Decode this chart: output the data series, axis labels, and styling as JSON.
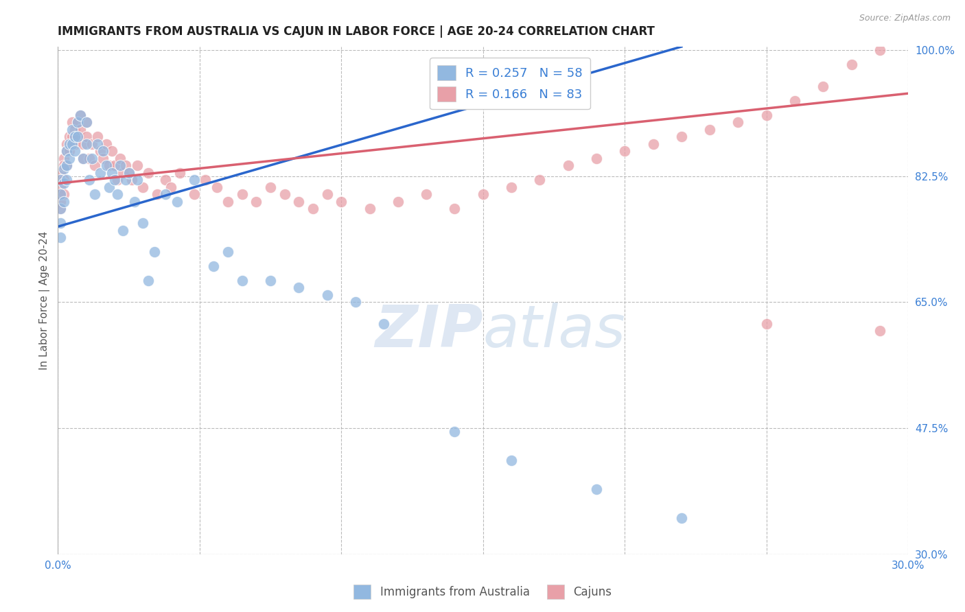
{
  "title": "IMMIGRANTS FROM AUSTRALIA VS CAJUN IN LABOR FORCE | AGE 20-24 CORRELATION CHART",
  "source": "Source: ZipAtlas.com",
  "ylabel": "In Labor Force | Age 20-24",
  "x_min": 0.0,
  "x_max": 0.3,
  "y_min": 0.3,
  "y_max": 1.005,
  "y_ticks": [
    0.3,
    0.475,
    0.65,
    0.825,
    1.0
  ],
  "australia_color": "#92b8e0",
  "cajun_color": "#e8a0a8",
  "australia_line_color": "#2a66cc",
  "cajun_line_color": "#d96070",
  "R_australia": 0.257,
  "N_australia": 58,
  "R_cajun": 0.166,
  "N_cajun": 83,
  "legend_label_australia": "Immigrants from Australia",
  "legend_label_cajun": "Cajuns",
  "watermark_zip": "ZIP",
  "watermark_atlas": "atlas",
  "background_color": "#ffffff",
  "grid_color": "#bbbbbb",
  "title_fontsize": 12,
  "axis_label_color": "#3a7fd5",
  "aus_line_x0": 0.0,
  "aus_line_x1": 0.22,
  "aus_line_y0": 0.755,
  "aus_line_y1": 1.005,
  "caj_line_x0": 0.0,
  "caj_line_x1": 0.3,
  "caj_line_y0": 0.815,
  "caj_line_y1": 0.94,
  "aus_scatter_x": [
    0.001,
    0.001,
    0.001,
    0.001,
    0.001,
    0.002,
    0.002,
    0.002,
    0.003,
    0.003,
    0.003,
    0.004,
    0.004,
    0.005,
    0.005,
    0.006,
    0.006,
    0.007,
    0.007,
    0.008,
    0.009,
    0.01,
    0.01,
    0.011,
    0.012,
    0.013,
    0.014,
    0.015,
    0.016,
    0.017,
    0.018,
    0.019,
    0.02,
    0.021,
    0.022,
    0.023,
    0.024,
    0.025,
    0.027,
    0.028,
    0.03,
    0.032,
    0.034,
    0.038,
    0.042,
    0.048,
    0.055,
    0.06,
    0.065,
    0.075,
    0.085,
    0.095,
    0.105,
    0.115,
    0.14,
    0.16,
    0.19,
    0.22
  ],
  "aus_scatter_y": [
    0.82,
    0.8,
    0.78,
    0.76,
    0.74,
    0.835,
    0.815,
    0.79,
    0.86,
    0.84,
    0.82,
    0.87,
    0.85,
    0.89,
    0.87,
    0.88,
    0.86,
    0.9,
    0.88,
    0.91,
    0.85,
    0.9,
    0.87,
    0.82,
    0.85,
    0.8,
    0.87,
    0.83,
    0.86,
    0.84,
    0.81,
    0.83,
    0.82,
    0.8,
    0.84,
    0.75,
    0.82,
    0.83,
    0.79,
    0.82,
    0.76,
    0.68,
    0.72,
    0.8,
    0.79,
    0.82,
    0.7,
    0.72,
    0.68,
    0.68,
    0.67,
    0.66,
    0.65,
    0.62,
    0.47,
    0.43,
    0.39,
    0.35
  ],
  "caj_scatter_x": [
    0.001,
    0.001,
    0.001,
    0.001,
    0.001,
    0.001,
    0.002,
    0.002,
    0.002,
    0.002,
    0.003,
    0.003,
    0.003,
    0.004,
    0.004,
    0.005,
    0.005,
    0.006,
    0.006,
    0.007,
    0.007,
    0.008,
    0.008,
    0.009,
    0.009,
    0.01,
    0.01,
    0.011,
    0.012,
    0.013,
    0.014,
    0.015,
    0.016,
    0.017,
    0.018,
    0.019,
    0.02,
    0.021,
    0.022,
    0.023,
    0.024,
    0.025,
    0.026,
    0.028,
    0.03,
    0.032,
    0.035,
    0.038,
    0.04,
    0.043,
    0.048,
    0.052,
    0.056,
    0.06,
    0.065,
    0.07,
    0.075,
    0.08,
    0.085,
    0.09,
    0.095,
    0.1,
    0.11,
    0.12,
    0.13,
    0.14,
    0.15,
    0.16,
    0.17,
    0.18,
    0.19,
    0.2,
    0.21,
    0.22,
    0.23,
    0.24,
    0.25,
    0.26,
    0.27,
    0.28,
    0.29,
    0.29,
    0.25
  ],
  "caj_scatter_y": [
    0.83,
    0.82,
    0.81,
    0.8,
    0.79,
    0.78,
    0.85,
    0.84,
    0.82,
    0.8,
    0.87,
    0.86,
    0.84,
    0.88,
    0.86,
    0.9,
    0.88,
    0.89,
    0.87,
    0.9,
    0.88,
    0.91,
    0.89,
    0.87,
    0.85,
    0.9,
    0.88,
    0.85,
    0.87,
    0.84,
    0.88,
    0.86,
    0.85,
    0.87,
    0.84,
    0.86,
    0.84,
    0.82,
    0.85,
    0.83,
    0.84,
    0.83,
    0.82,
    0.84,
    0.81,
    0.83,
    0.8,
    0.82,
    0.81,
    0.83,
    0.8,
    0.82,
    0.81,
    0.79,
    0.8,
    0.79,
    0.81,
    0.8,
    0.79,
    0.78,
    0.8,
    0.79,
    0.78,
    0.79,
    0.8,
    0.78,
    0.8,
    0.81,
    0.82,
    0.84,
    0.85,
    0.86,
    0.87,
    0.88,
    0.89,
    0.9,
    0.91,
    0.93,
    0.95,
    0.98,
    1.0,
    0.61,
    0.62
  ]
}
